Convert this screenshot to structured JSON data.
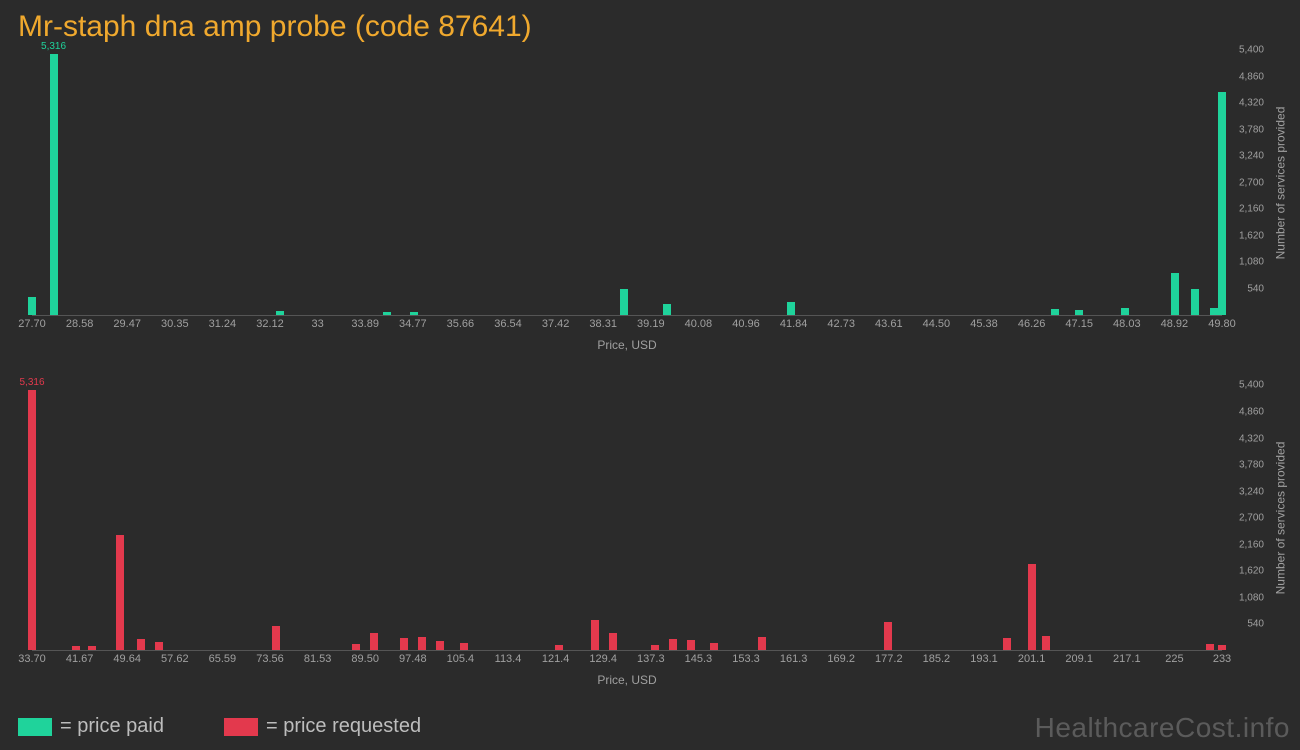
{
  "title": "Mr-staph dna amp probe (code 87641)",
  "watermark": "HealthcareCost.info",
  "colors": {
    "background": "#2b2b2b",
    "title": "#f0a92e",
    "series_paid": "#1fd39b",
    "series_requested": "#e3394d",
    "axis_text": "#a0a0a0",
    "legend_text": "#bdbdbd"
  },
  "legend": [
    {
      "swatch": "#1fd39b",
      "label": "= price paid"
    },
    {
      "swatch": "#e3394d",
      "label": "= price requested"
    }
  ],
  "y_axis": {
    "label": "Number of services provided",
    "ymax": 5400,
    "ticks": [
      540,
      1080,
      1620,
      2160,
      2700,
      3240,
      3780,
      4320,
      4860,
      5400
    ]
  },
  "chart_paid": {
    "type": "bar",
    "color": "#1fd39b",
    "x_label": "Price, USD",
    "x_domain": [
      27.7,
      49.8
    ],
    "x_ticks": [
      "27.70",
      "28.58",
      "29.47",
      "30.35",
      "31.24",
      "32.12",
      "33",
      "33.89",
      "34.77",
      "35.66",
      "36.54",
      "37.42",
      "38.31",
      "39.19",
      "40.08",
      "40.96",
      "41.84",
      "42.73",
      "43.61",
      "44.50",
      "45.38",
      "46.26",
      "47.15",
      "48.03",
      "48.92",
      "49.80"
    ],
    "max_label": "5,316",
    "bars": [
      {
        "x": 27.7,
        "y": 360
      },
      {
        "x": 28.1,
        "y": 5316,
        "label": "5,316"
      },
      {
        "x": 32.3,
        "y": 80
      },
      {
        "x": 34.3,
        "y": 60
      },
      {
        "x": 34.8,
        "y": 60
      },
      {
        "x": 38.7,
        "y": 520
      },
      {
        "x": 39.5,
        "y": 220
      },
      {
        "x": 41.8,
        "y": 250
      },
      {
        "x": 46.7,
        "y": 110
      },
      {
        "x": 47.15,
        "y": 90
      },
      {
        "x": 48.0,
        "y": 130
      },
      {
        "x": 48.92,
        "y": 850
      },
      {
        "x": 49.3,
        "y": 520
      },
      {
        "x": 49.65,
        "y": 140
      },
      {
        "x": 49.8,
        "y": 4550
      }
    ]
  },
  "chart_requested": {
    "type": "bar",
    "color": "#e3394d",
    "x_label": "Price, USD",
    "x_domain": [
      33.7,
      233.0
    ],
    "x_ticks": [
      "33.70",
      "41.67",
      "49.64",
      "57.62",
      "65.59",
      "73.56",
      "81.53",
      "89.50",
      "97.48",
      "105.4",
      "113.4",
      "121.4",
      "129.4",
      "137.3",
      "145.3",
      "153.3",
      "161.3",
      "169.2",
      "177.2",
      "185.2",
      "193.1",
      "201.1",
      "209.1",
      "217.1",
      "225",
      "233"
    ],
    "max_label": "5,316",
    "bars": [
      {
        "x": 33.7,
        "y": 5316,
        "label": "5,316"
      },
      {
        "x": 41.0,
        "y": 80
      },
      {
        "x": 43.8,
        "y": 80
      },
      {
        "x": 48.5,
        "y": 2350
      },
      {
        "x": 52.0,
        "y": 230
      },
      {
        "x": 55.0,
        "y": 170
      },
      {
        "x": 74.5,
        "y": 500
      },
      {
        "x": 88.0,
        "y": 120
      },
      {
        "x": 91.0,
        "y": 350
      },
      {
        "x": 96.0,
        "y": 240
      },
      {
        "x": 99.0,
        "y": 260
      },
      {
        "x": 102.0,
        "y": 180
      },
      {
        "x": 106.0,
        "y": 140
      },
      {
        "x": 122.0,
        "y": 100
      },
      {
        "x": 128.0,
        "y": 620
      },
      {
        "x": 131.0,
        "y": 350
      },
      {
        "x": 138.0,
        "y": 100
      },
      {
        "x": 141.0,
        "y": 220
      },
      {
        "x": 144.0,
        "y": 200
      },
      {
        "x": 148.0,
        "y": 150
      },
      {
        "x": 156.0,
        "y": 260
      },
      {
        "x": 177.0,
        "y": 580
      },
      {
        "x": 197.0,
        "y": 250
      },
      {
        "x": 201.1,
        "y": 1750
      },
      {
        "x": 203.5,
        "y": 280
      },
      {
        "x": 231.0,
        "y": 120
      },
      {
        "x": 233.0,
        "y": 100
      }
    ]
  }
}
